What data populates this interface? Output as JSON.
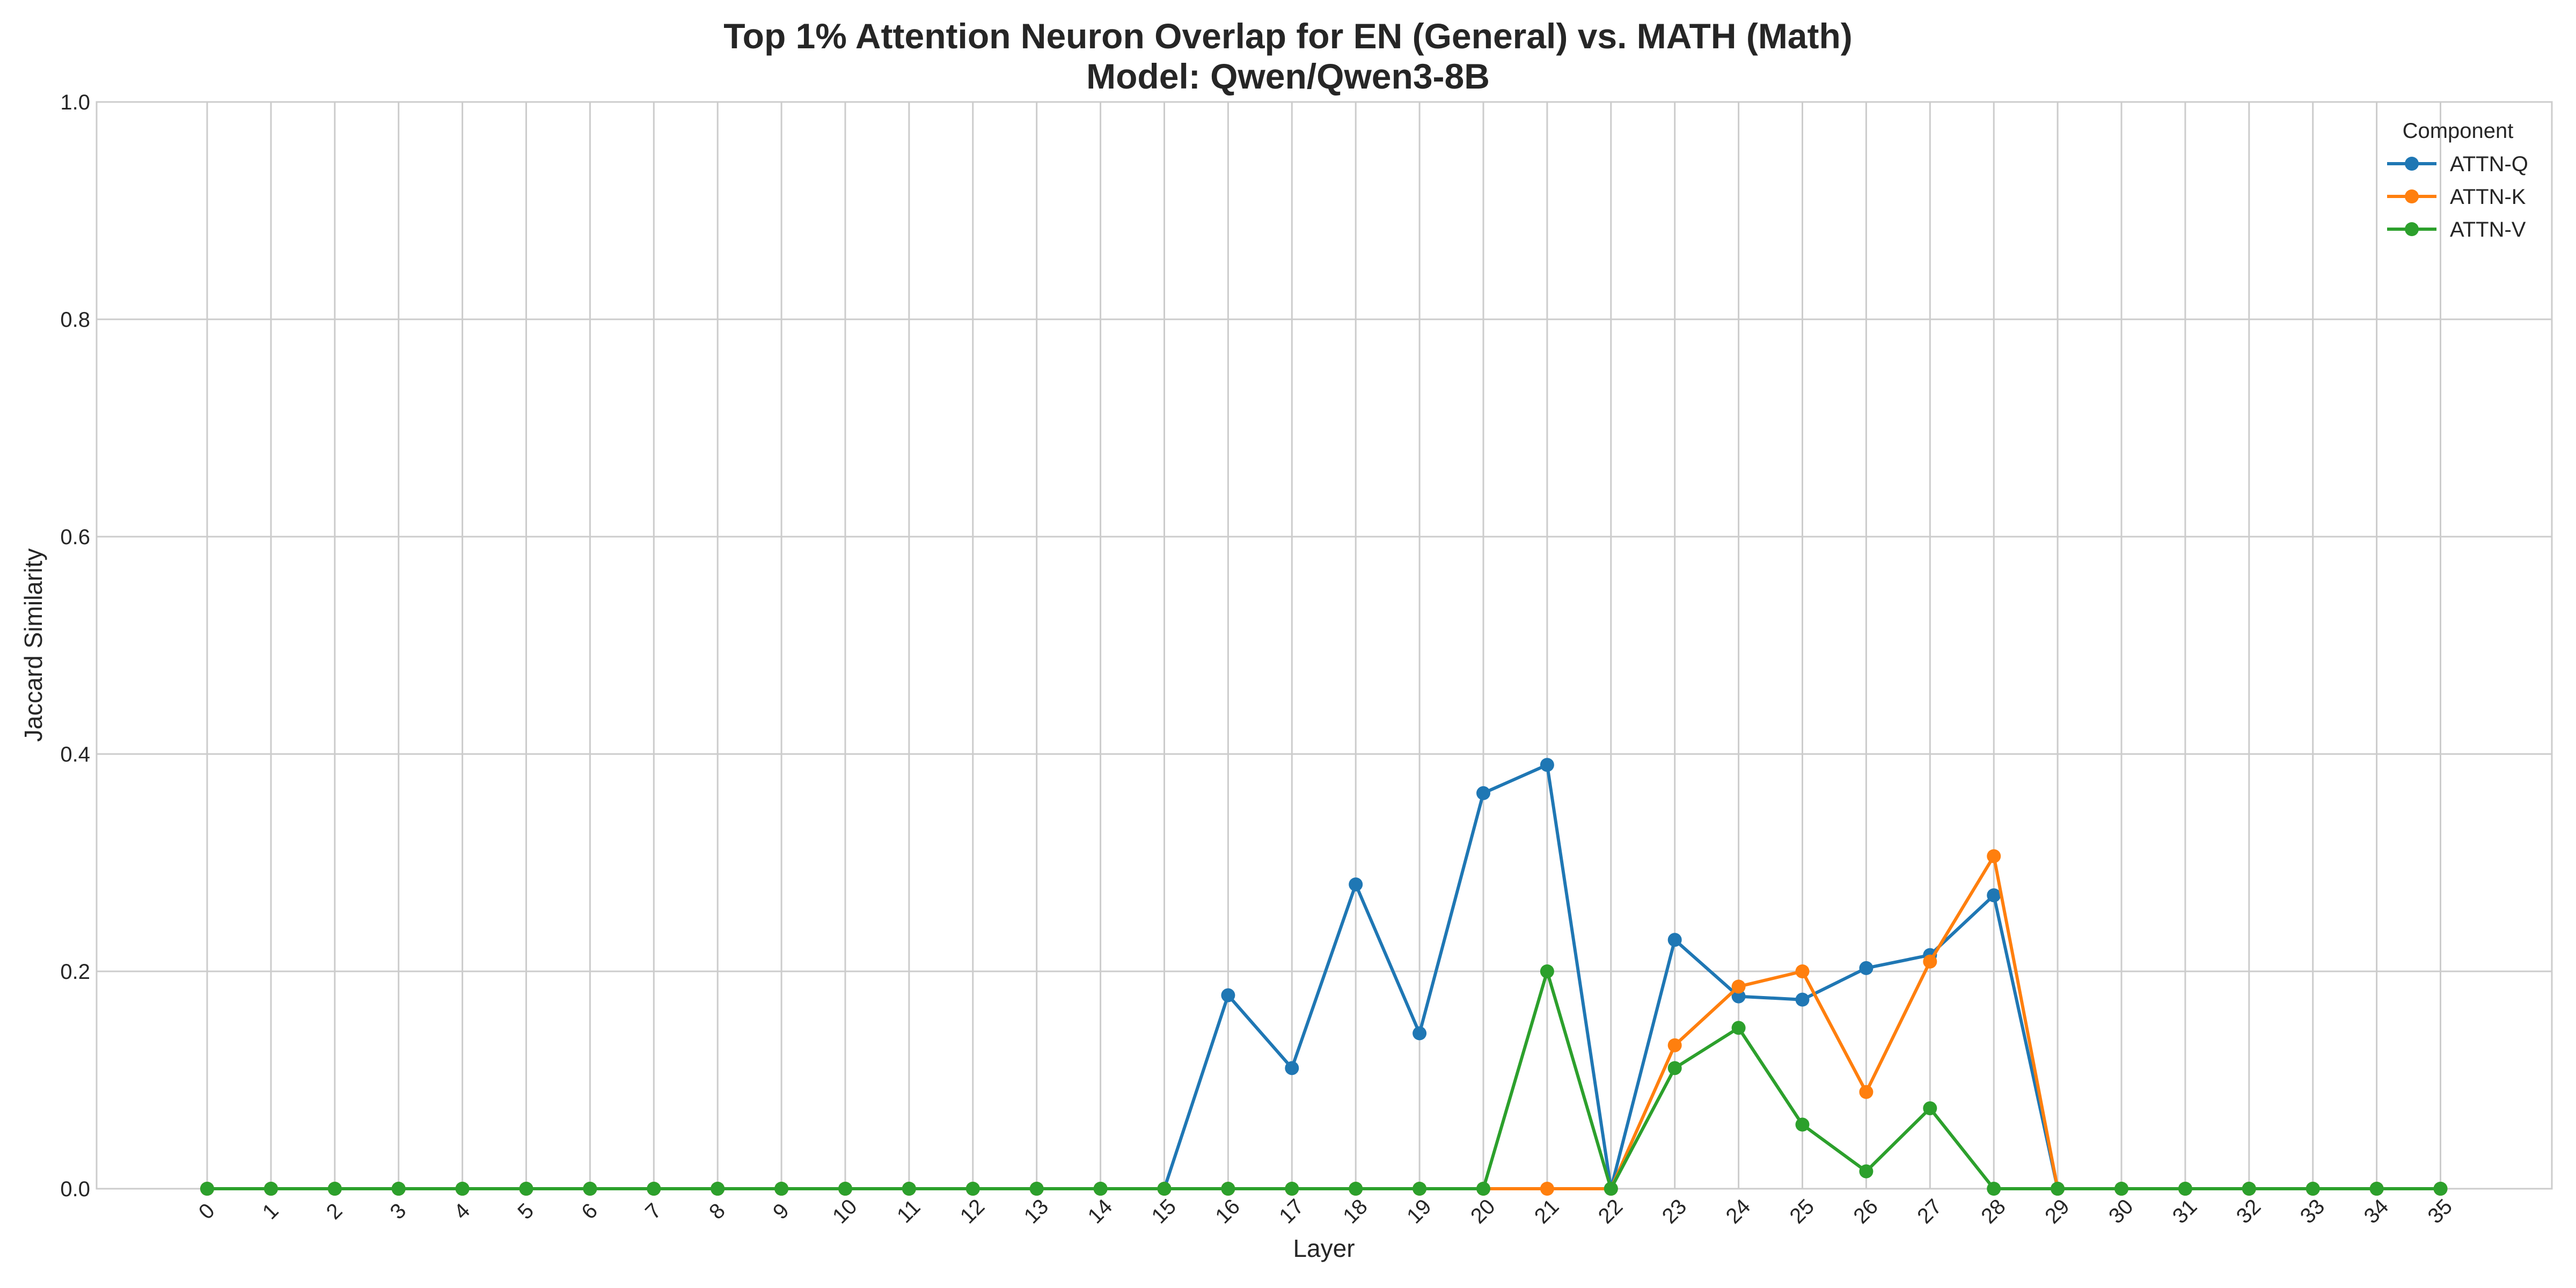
{
  "chart_data": {
    "type": "line",
    "title": "Top 1% Attention Neuron Overlap for EN (General) vs. MATH (Math)",
    "subtitle": "Model: Qwen/Qwen3-8B",
    "xlabel": "Layer",
    "ylabel": "Jaccard Similarity",
    "x": [
      0,
      1,
      2,
      3,
      4,
      5,
      6,
      7,
      8,
      9,
      10,
      11,
      12,
      13,
      14,
      15,
      16,
      17,
      18,
      19,
      20,
      21,
      22,
      23,
      24,
      25,
      26,
      27,
      28,
      29,
      30,
      31,
      32,
      33,
      34,
      35
    ],
    "x_tick_labels": [
      "0",
      "1",
      "2",
      "3",
      "4",
      "5",
      "6",
      "7",
      "8",
      "9",
      "10",
      "11",
      "12",
      "13",
      "14",
      "15",
      "16",
      "17",
      "18",
      "19",
      "20",
      "21",
      "22",
      "23",
      "24",
      "25",
      "26",
      "27",
      "28",
      "29",
      "30",
      "31",
      "32",
      "33",
      "34",
      "35"
    ],
    "ylim": [
      0,
      1.0
    ],
    "y_ticks": [
      0.0,
      0.2,
      0.4,
      0.6,
      0.8,
      1.0
    ],
    "y_tick_labels": [
      "0.0",
      "0.2",
      "0.4",
      "0.6",
      "0.8",
      "1.0"
    ],
    "grid": true,
    "legend": {
      "title": "Component",
      "placement": "top-right"
    },
    "series": [
      {
        "name": "ATTN-Q",
        "color": "#1f77b4",
        "values": [
          0,
          0,
          0,
          0,
          0,
          0,
          0,
          0,
          0,
          0,
          0,
          0,
          0,
          0,
          0,
          0,
          0.178,
          0.111,
          0.28,
          0.143,
          0.364,
          0.39,
          0,
          0.229,
          0.177,
          0.174,
          0.203,
          0.215,
          0.27,
          0,
          0,
          0,
          0,
          0,
          0,
          0
        ]
      },
      {
        "name": "ATTN-K",
        "color": "#ff7f0e",
        "values": [
          0,
          0,
          0,
          0,
          0,
          0,
          0,
          0,
          0,
          0,
          0,
          0,
          0,
          0,
          0,
          0,
          0,
          0,
          0,
          0,
          0,
          0,
          0,
          0.132,
          0.186,
          0.2,
          0.089,
          0.209,
          0.306,
          0,
          0,
          0,
          0,
          0,
          0,
          0
        ]
      },
      {
        "name": "ATTN-V",
        "color": "#2ca02c",
        "values": [
          0,
          0,
          0,
          0,
          0,
          0,
          0,
          0,
          0,
          0,
          0,
          0,
          0,
          0,
          0,
          0,
          0,
          0,
          0,
          0,
          0,
          0.2,
          0,
          0.111,
          0.148,
          0.059,
          0.016,
          0.074,
          0,
          0,
          0,
          0,
          0,
          0,
          0,
          0
        ]
      }
    ]
  }
}
